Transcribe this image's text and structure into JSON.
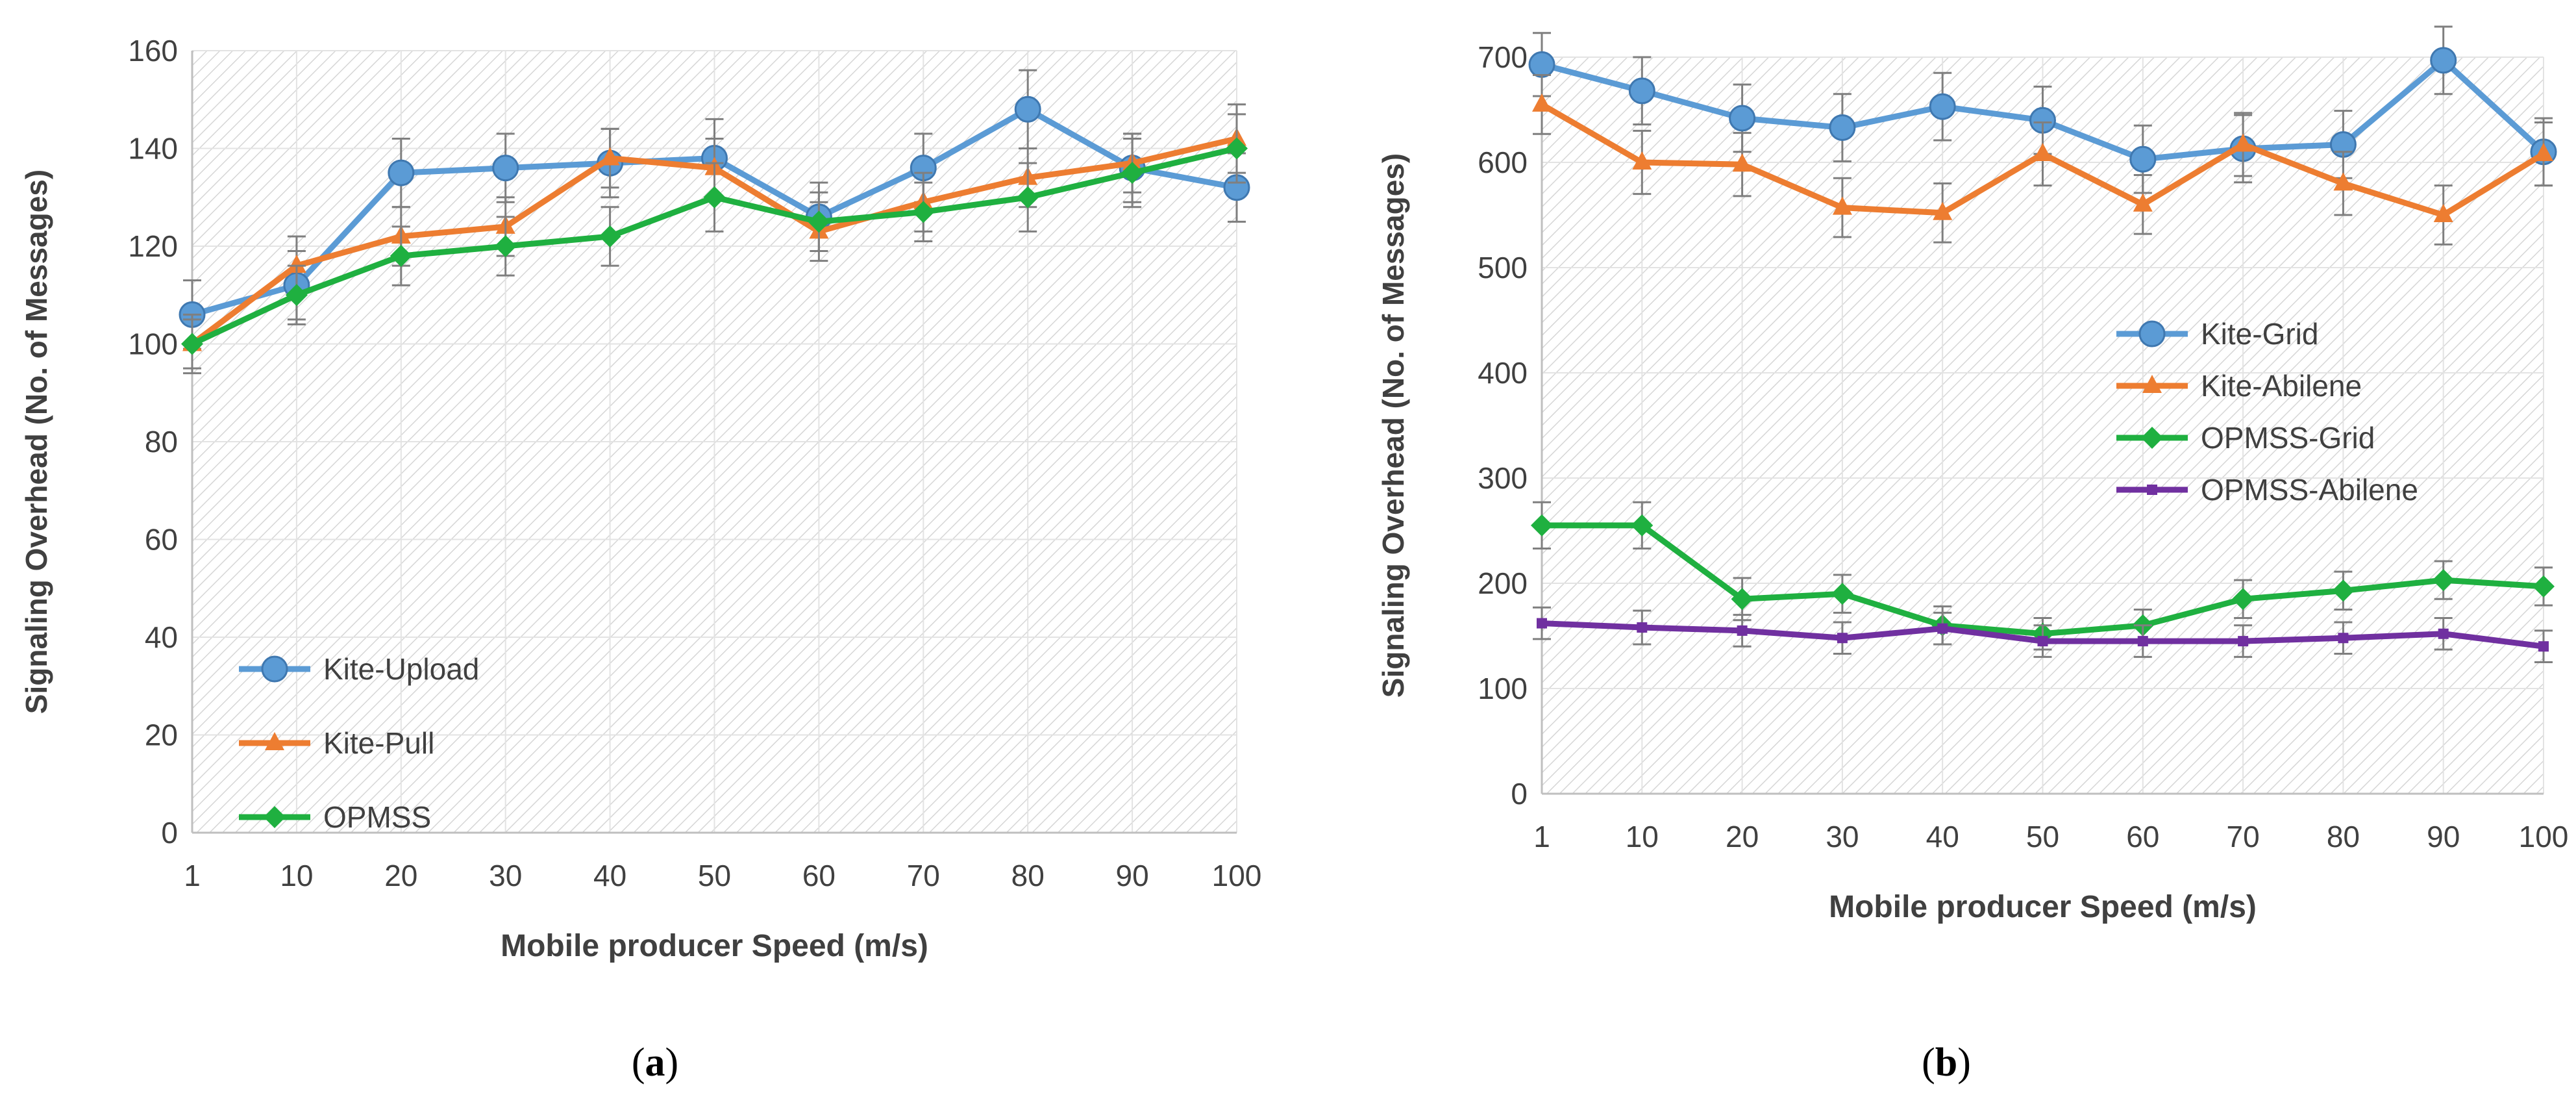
{
  "chart_data": [
    {
      "type": "line",
      "label": "a",
      "xlabel": "Mobile producer Speed (m/s)",
      "ylabel": "Signaling Overhead (No. of Messages)",
      "categories": [
        "1",
        "10",
        "20",
        "30",
        "40",
        "50",
        "60",
        "70",
        "80",
        "90",
        "100"
      ],
      "ylim": [
        0,
        160
      ],
      "yticks": [
        0,
        20,
        40,
        60,
        80,
        100,
        120,
        140,
        160
      ],
      "grid": true,
      "legend_position": "bottom-left",
      "series": [
        {
          "name": "Kite-Upload",
          "color": "#5B9BD5",
          "marker": "circle",
          "values": [
            106,
            112,
            135,
            136,
            137,
            138,
            126,
            136,
            148,
            136,
            132
          ],
          "errors": [
            7,
            7,
            7,
            7,
            7,
            8,
            7,
            7,
            8,
            7,
            7
          ]
        },
        {
          "name": "Kite-Pull",
          "color": "#ED7D31",
          "marker": "triangle",
          "values": [
            100,
            116,
            122,
            124,
            138,
            136,
            123,
            129,
            134,
            137,
            142
          ],
          "errors": [
            6,
            6,
            6,
            6,
            6,
            6,
            6,
            6,
            6,
            6,
            7
          ]
        },
        {
          "name": "OPMSS",
          "color": "#1FB040",
          "marker": "diamond",
          "values": [
            100,
            110,
            118,
            120,
            122,
            130,
            125,
            127,
            130,
            135,
            140
          ],
          "errors": [
            5,
            6,
            6,
            6,
            6,
            7,
            6,
            6,
            7,
            7,
            7
          ]
        }
      ]
    },
    {
      "type": "line",
      "label": "b",
      "xlabel": "Mobile producer Speed (m/s)",
      "ylabel": "Signaling Overhead (No. of Messages)",
      "categories": [
        "1",
        "10",
        "20",
        "30",
        "40",
        "50",
        "60",
        "70",
        "80",
        "90",
        "100"
      ],
      "ylim": [
        0,
        700
      ],
      "yticks": [
        0,
        100,
        200,
        300,
        400,
        500,
        600,
        700
      ],
      "grid": true,
      "legend_position": "center-right",
      "series": [
        {
          "name": "Kite-Grid",
          "color": "#5B9BD5",
          "marker": "circle",
          "values": [
            693,
            668,
            642,
            633,
            653,
            640,
            603,
            613,
            617,
            697,
            610
          ],
          "errors": [
            30,
            32,
            32,
            32,
            32,
            32,
            32,
            32,
            32,
            32,
            32
          ]
        },
        {
          "name": "Kite-Abilene",
          "color": "#ED7D31",
          "marker": "triangle",
          "values": [
            655,
            600,
            598,
            557,
            552,
            608,
            560,
            617,
            580,
            550,
            608
          ],
          "errors": [
            28,
            30,
            30,
            28,
            28,
            30,
            28,
            30,
            30,
            28,
            30
          ]
        },
        {
          "name": "OPMSS-Grid",
          "color": "#1FB040",
          "marker": "diamond",
          "values": [
            255,
            255,
            185,
            190,
            160,
            152,
            160,
            185,
            193,
            203,
            197
          ],
          "errors": [
            22,
            22,
            20,
            18,
            18,
            15,
            15,
            18,
            18,
            18,
            18
          ]
        },
        {
          "name": "OPMSS-Abilene",
          "color": "#7030A0",
          "marker": "square",
          "values": [
            162,
            158,
            155,
            148,
            157,
            145,
            145,
            145,
            148,
            152,
            140
          ],
          "errors": [
            15,
            16,
            15,
            15,
            15,
            15,
            15,
            15,
            15,
            15,
            15
          ]
        }
      ]
    }
  ],
  "captions": {
    "a": "a",
    "b": "b"
  }
}
